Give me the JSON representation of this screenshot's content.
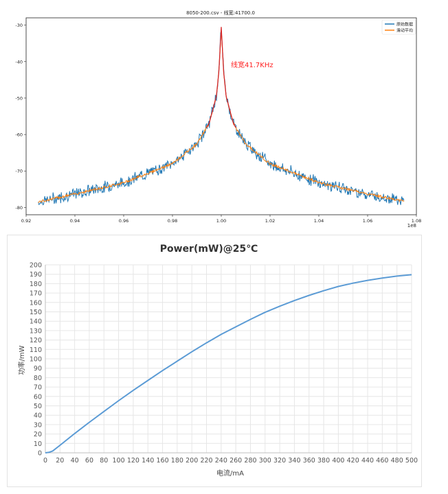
{
  "chart_data": [
    {
      "type": "line",
      "title": "8050-200.csv - 线宽:41700.0",
      "xlabel": "",
      "ylabel": "",
      "x_scale_label": "1e8",
      "xlim": [
        0.92,
        1.08
      ],
      "ylim": [
        -82,
        -28
      ],
      "x_ticks": [
        "0.92",
        "0.94",
        "0.96",
        "0.98",
        "1.00",
        "1.02",
        "1.04",
        "1.06",
        "1.08"
      ],
      "y_ticks": [
        "-30",
        "-40",
        "-50",
        "-60",
        "-70",
        "-80"
      ],
      "legend": {
        "placement": "top-right",
        "entries": [
          "原始数据",
          "滑动平均"
        ]
      },
      "annotation": {
        "text": "线宽41.7KHz",
        "color": "#ff2020"
      },
      "colors": {
        "raw": "#1f77b4",
        "smooth": "#ff7f0e",
        "fit": "#d62728"
      },
      "series": [
        {
          "name": "原始数据",
          "x": [
            0.925,
            0.94,
            0.96,
            0.98,
            0.99,
            0.995,
            0.998,
            0.999,
            1.0,
            1.001,
            1.002,
            1.005,
            1.01,
            1.02,
            1.04,
            1.06,
            1.075
          ],
          "values": [
            -78.5,
            -76.3,
            -73.2,
            -68.0,
            -62.6,
            -57.0,
            -49.5,
            -43.0,
            -30.5,
            -43.0,
            -49.5,
            -57.0,
            -62.6,
            -68.0,
            -73.2,
            -76.3,
            -78.3
          ]
        },
        {
          "name": "滑动平均",
          "x": [
            0.925,
            0.94,
            0.96,
            0.98,
            0.99,
            0.995,
            0.998,
            0.999,
            1.0,
            1.001,
            1.002,
            1.005,
            1.01,
            1.02,
            1.04,
            1.06,
            1.075
          ],
          "values": [
            -78.5,
            -76.3,
            -73.2,
            -68.0,
            -62.6,
            -57.0,
            -49.5,
            -43.0,
            -31.5,
            -43.0,
            -49.5,
            -57.0,
            -62.6,
            -68.0,
            -73.2,
            -76.3,
            -78.3
          ]
        }
      ],
      "grid": false
    },
    {
      "type": "line",
      "title": "Power(mW)@25℃",
      "xlabel": "电流/mA",
      "ylabel": "功率/mW",
      "xlim": [
        0,
        500
      ],
      "ylim": [
        0,
        200
      ],
      "x_ticks": [
        "0",
        "20",
        "40",
        "60",
        "80",
        "100",
        "120",
        "140",
        "160",
        "180",
        "200",
        "220",
        "240",
        "260",
        "280",
        "300",
        "320",
        "340",
        "360",
        "380",
        "400",
        "420",
        "440",
        "460",
        "480",
        "500"
      ],
      "y_ticks": [
        "0",
        "10",
        "20",
        "30",
        "40",
        "50",
        "60",
        "70",
        "80",
        "90",
        "100",
        "110",
        "120",
        "130",
        "140",
        "150",
        "160",
        "170",
        "180",
        "190",
        "200"
      ],
      "colors": {
        "line": "#5b9bd5",
        "grid": "#e6e6e6",
        "axis": "#bfbfbf"
      },
      "series": [
        {
          "name": "",
          "x": [
            0,
            5,
            10,
            20,
            40,
            60,
            80,
            100,
            120,
            140,
            160,
            180,
            200,
            220,
            240,
            260,
            280,
            300,
            320,
            340,
            360,
            380,
            400,
            420,
            440,
            460,
            480,
            500
          ],
          "values": [
            0,
            0.5,
            2,
            8,
            20.5,
            32.5,
            44,
            55.5,
            66.5,
            77,
            87.5,
            97.5,
            107.5,
            117,
            126,
            134,
            142,
            149.5,
            156,
            162,
            167.5,
            172.5,
            177,
            180.5,
            183.5,
            186,
            188,
            189.5
          ]
        }
      ],
      "grid": true
    }
  ]
}
